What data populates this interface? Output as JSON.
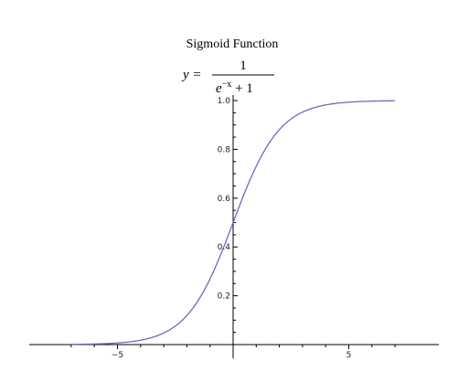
{
  "chart_data": {
    "type": "line",
    "title": "Sigmoid Function",
    "formula": {
      "lhs": "y =",
      "numerator": "1",
      "denominator_base": "e",
      "denominator_exp": "−x",
      "denominator_rest": " + 1"
    },
    "xlabel": "",
    "ylabel": "",
    "xlim": [
      -7,
      7
    ],
    "ylim": [
      0,
      1.0
    ],
    "grid": false,
    "x_ticks": [
      {
        "value": -5,
        "label": "−5"
      },
      {
        "value": 5,
        "label": "5"
      }
    ],
    "y_ticks": [
      {
        "value": 0.2,
        "label": "0.2"
      },
      {
        "value": 0.4,
        "label": "0.4"
      },
      {
        "value": 0.6,
        "label": "0.6"
      },
      {
        "value": 0.8,
        "label": "0.8"
      },
      {
        "value": 1.0,
        "label": "1.0"
      }
    ],
    "series": [
      {
        "color": "#6b6bbf",
        "x": [
          -7,
          -6,
          -5,
          -4,
          -3,
          -2,
          -1,
          0,
          1,
          2,
          3,
          4,
          5,
          6,
          7
        ],
        "y": [
          0.0009,
          0.0025,
          0.0067,
          0.018,
          0.047,
          0.119,
          0.269,
          0.5,
          0.731,
          0.881,
          0.953,
          0.982,
          0.993,
          0.9975,
          0.9991
        ]
      }
    ]
  }
}
